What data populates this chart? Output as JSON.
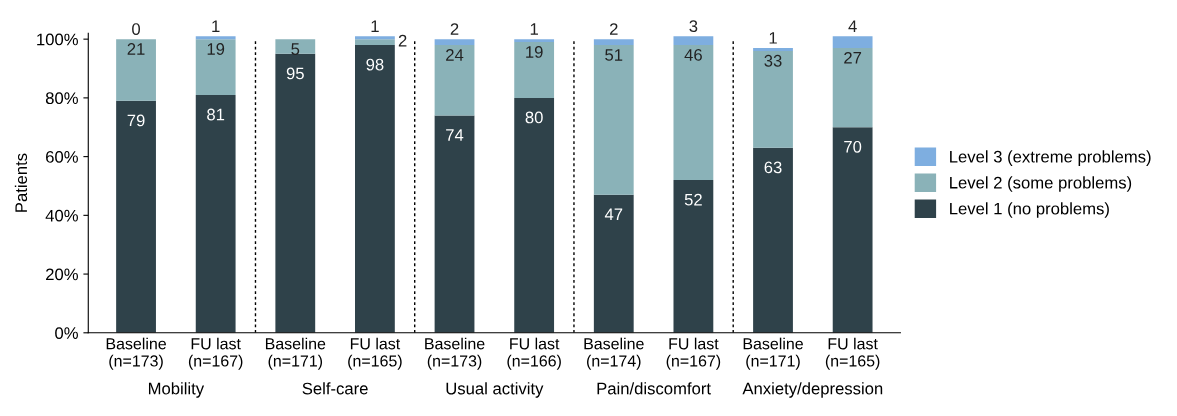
{
  "chart_data": {
    "type": "bar",
    "stacked": true,
    "ylabel": "Patients",
    "categories": [
      "Baseline\n(n=173)",
      "FU last\n(n=167)",
      "Baseline\n(n=171)",
      "FU last\n(n=165)",
      "Baseline\n(n=173)",
      "FU last\n(n=166)",
      "Baseline\n(n=174)",
      "FU last\n(n=167)",
      "Baseline\n(n=171)",
      "FU last\n(n=165)"
    ],
    "series": [
      {
        "name": "Level 1 (no problems)",
        "color": "#2f424a",
        "values": [
          79,
          81,
          95,
          98,
          74,
          80,
          47,
          52,
          63,
          70
        ],
        "value_labels": [
          "79",
          "81",
          "95",
          "98",
          "74",
          "80",
          "47",
          "52",
          "63",
          "70"
        ]
      },
      {
        "name": "Level 2 (some problems)",
        "color": "#8ab2b8",
        "values": [
          21,
          19,
          5,
          2,
          24,
          19,
          51,
          46,
          33,
          27
        ],
        "value_labels": [
          "21",
          "19",
          "5",
          "2",
          "24",
          "19",
          "51",
          "46",
          "33",
          "27"
        ]
      },
      {
        "name": "Level 3 (extreme problems)",
        "color": "#7eaee0",
        "values": [
          0,
          1,
          0,
          1,
          2,
          1,
          2,
          3,
          1,
          4
        ],
        "value_labels": [
          "0",
          "1",
          null,
          "1",
          "2",
          "1",
          "2",
          "3",
          "1",
          "4"
        ]
      }
    ],
    "annotations": [
      "Mobility",
      "Self-care",
      "Usual activity",
      "Pain/discomfort",
      "Anxiety/depression"
    ],
    "ylim": [
      0,
      102
    ],
    "yticks": [
      {
        "value": 0,
        "label": "0%"
      },
      {
        "value": 20,
        "label": "20%"
      },
      {
        "value": 40,
        "label": "40%"
      },
      {
        "value": 60,
        "label": "60%"
      },
      {
        "value": 80,
        "label": "80%"
      },
      {
        "value": 100,
        "label": "100%"
      }
    ],
    "legend": "right"
  }
}
